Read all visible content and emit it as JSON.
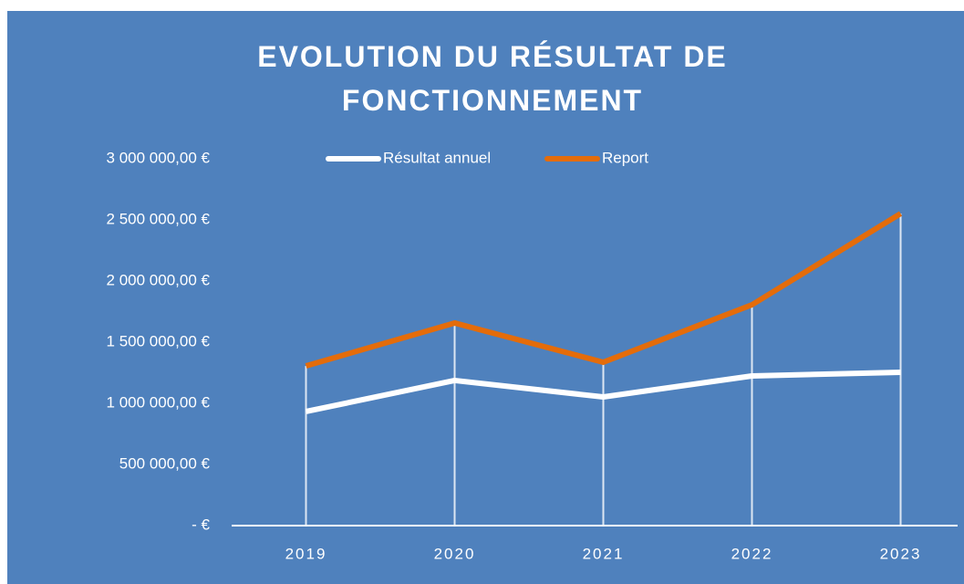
{
  "chart_data": {
    "type": "line",
    "title": "EVOLUTION DU RÉSULTAT DE FONCTIONNEMENT",
    "categories": [
      "2019",
      "2020",
      "2021",
      "2022",
      "2023"
    ],
    "series": [
      {
        "name": "Résultat annuel",
        "color": "#ffffff",
        "values": [
          933000,
          1187000,
          1052000,
          1224000,
          1254000
        ]
      },
      {
        "name": "Report",
        "color": "#e46c0a",
        "values": [
          1306000,
          1657000,
          1336000,
          1806000,
          2552000
        ]
      }
    ],
    "ylim": [
      0,
      3000000
    ],
    "yticks": [
      {
        "value": 0,
        "label": "-  €"
      },
      {
        "value": 500000,
        "label": "500 000,00 €"
      },
      {
        "value": 1000000,
        "label": "1 000 000,00 €"
      },
      {
        "value": 1500000,
        "label": "1 500 000,00 €"
      },
      {
        "value": 2000000,
        "label": "2 000 000,00 €"
      },
      {
        "value": 2500000,
        "label": "2 500 000,00 €"
      },
      {
        "value": 3000000,
        "label": "3 000 000,00 €"
      }
    ],
    "legend": "top"
  }
}
